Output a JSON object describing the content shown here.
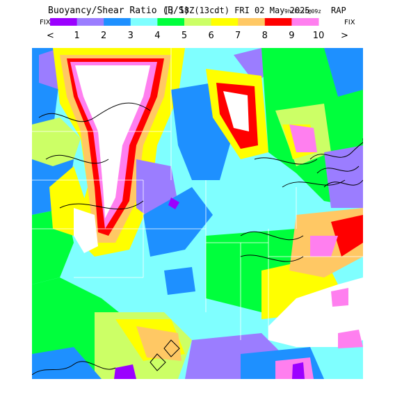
{
  "header": {
    "title_main": "Buoyancy/Shear Ratio (B/S)",
    "title_time": "[] 18Z(13cdt) FRI 02 May 2025",
    "title_fcst": "9hrFcst@09z",
    "title_model": "RAP"
  },
  "colorbar": {
    "left_label": "FIX",
    "right_label": "FIX",
    "less_label": "<",
    "greater_label": ">",
    "tick_labels": [
      "1",
      "2",
      "3",
      "4",
      "5",
      "6",
      "7",
      "8",
      "9",
      "10"
    ],
    "colors": [
      "#9b00ff",
      "#9b7dff",
      "#1e90ff",
      "#7fffff",
      "#00ff3c",
      "#ccff66",
      "#ffff00",
      "#ffc864",
      "#ff0000",
      "#ff7fef"
    ]
  },
  "map": {
    "background_color": "#7fffff",
    "region_colors": {
      "purple": "#9b00ff",
      "lavender": "#9b7dff",
      "blue": "#1e90ff",
      "green": "#00ff3c",
      "lightgreen": "#ccff66",
      "yellow": "#ffff00",
      "tan": "#ffc864",
      "red": "#ff0000",
      "pink": "#ff7fef",
      "white": "#ffffff",
      "water": "#ffffff"
    }
  }
}
